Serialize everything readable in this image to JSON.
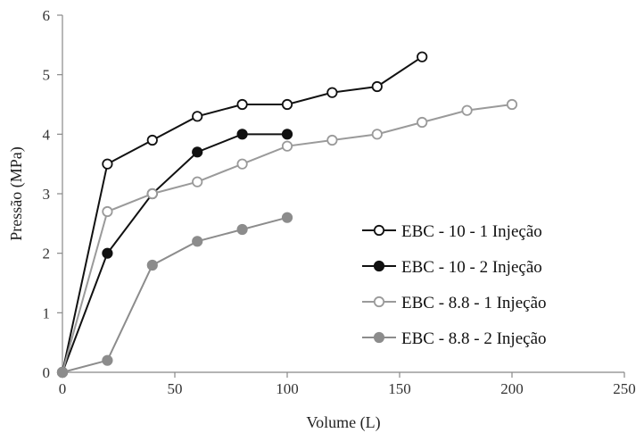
{
  "chart_data": {
    "type": "line",
    "xlabel": "Volume (L)",
    "ylabel": "Pressão (MPa)",
    "xlim": [
      0,
      250
    ],
    "ylim": [
      0,
      6
    ],
    "xticks": [
      0,
      50,
      100,
      150,
      200,
      250
    ],
    "yticks": [
      0,
      1,
      2,
      3,
      4,
      5,
      6
    ],
    "grid": false,
    "legend_position": "right",
    "series": [
      {
        "name": "EBC - 10 - 1 Injeção",
        "color": "#111111",
        "marker": "open-circle",
        "x": [
          0,
          20,
          40,
          60,
          80,
          100,
          120,
          140,
          160
        ],
        "y": [
          0,
          3.5,
          3.9,
          4.3,
          4.5,
          4.5,
          4.7,
          4.8,
          5.3
        ]
      },
      {
        "name": "EBC - 10 - 2 Injeção",
        "color": "#111111",
        "marker": "filled-circle",
        "x": [
          0,
          20,
          40,
          60,
          80,
          100
        ],
        "y": [
          0,
          2.0,
          3.0,
          3.7,
          4.0,
          4.0
        ]
      },
      {
        "name": "EBC - 8.8 - 1 Injeção",
        "color": "#9a9a9a",
        "marker": "open-circle",
        "x": [
          0,
          20,
          40,
          60,
          80,
          100,
          120,
          140,
          160,
          180,
          200
        ],
        "y": [
          0,
          2.7,
          3.0,
          3.2,
          3.5,
          3.8,
          3.9,
          4.0,
          4.2,
          4.4,
          4.5
        ]
      },
      {
        "name": "EBC - 8.8 - 2 Injeção",
        "color": "#8c8c8c",
        "marker": "filled-circle",
        "x": [
          0,
          20,
          40,
          60,
          80,
          100
        ],
        "y": [
          0,
          0.2,
          1.8,
          2.2,
          2.4,
          2.6
        ]
      }
    ]
  }
}
